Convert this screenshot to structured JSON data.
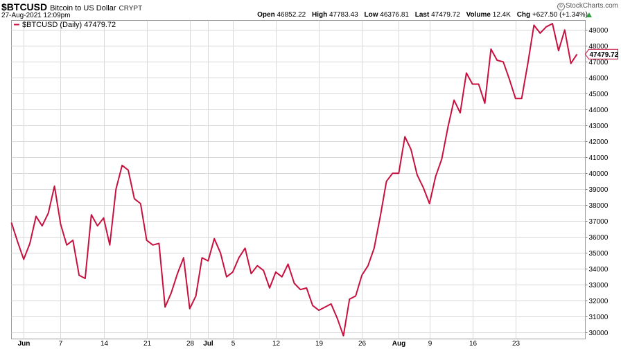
{
  "header": {
    "symbol": "$BTCUSD",
    "name": "Bitcoin to US Dollar",
    "exchange": "CRYPT",
    "brand": "StockCharts.com",
    "brand_mark": "©",
    "date": "27-Aug-2021 12:09pm"
  },
  "quote": {
    "open_label": "Open",
    "open": "46852.22",
    "high_label": "High",
    "high": "47783.43",
    "low_label": "Low",
    "low": "46376.81",
    "last_label": "Last",
    "last": "47479.72",
    "volume_label": "Volume",
    "volume": "12.4K",
    "chg_label": "Chg",
    "chg": "+627.50 (+1.34%)",
    "chg_direction": "up"
  },
  "legend": {
    "text": "$BTCUSD (Daily) 47479.72"
  },
  "colors": {
    "line": "#c8103e",
    "grid": "#d8d8d8",
    "chg_up": "#2e9e3e"
  },
  "chart_data": {
    "type": "line",
    "title": "$BTCUSD",
    "xlabel": "",
    "ylabel": "",
    "ylim": [
      29600,
      49600
    ],
    "y_ticks": [
      30000,
      31000,
      32000,
      33000,
      34000,
      35000,
      36000,
      37000,
      38000,
      39000,
      40000,
      41000,
      42000,
      43000,
      44000,
      45000,
      46000,
      47000,
      48000,
      49000
    ],
    "x_tick_labels": [
      "Jun",
      "7",
      "14",
      "21",
      "28",
      "Jul",
      "5",
      "12",
      "19",
      "26",
      "Aug",
      "9",
      "16",
      "23"
    ],
    "x_tick_index": [
      2,
      8,
      15,
      22,
      29,
      32,
      36,
      43,
      50,
      57,
      63,
      68,
      75,
      82
    ],
    "last_value": "47479.72",
    "grid": true,
    "legend_position": "top-left",
    "series": [
      {
        "name": "$BTCUSD (Daily)",
        "values": [
          36900,
          35700,
          34600,
          35600,
          37300,
          36700,
          37500,
          39200,
          36800,
          35500,
          35800,
          33600,
          33400,
          37400,
          36700,
          37200,
          35500,
          39000,
          40500,
          40200,
          38400,
          38100,
          35800,
          35500,
          35600,
          31600,
          32500,
          33700,
          34700,
          31500,
          32300,
          34700,
          34500,
          35900,
          35000,
          33500,
          33800,
          34700,
          35300,
          33700,
          34200,
          33900,
          32800,
          33800,
          33500,
          34300,
          33100,
          32700,
          32800,
          31700,
          31400,
          31600,
          31800,
          30900,
          29800,
          32100,
          32300,
          33600,
          34200,
          35300,
          37300,
          39500,
          40000,
          40000,
          42300,
          41500,
          39900,
          39100,
          38100,
          39800,
          40900,
          42900,
          44600,
          43800,
          46300,
          45600,
          45600,
          44400,
          47800,
          47100,
          47000,
          45900,
          44700,
          44700,
          46900,
          49300,
          48800,
          49200,
          49400,
          47700,
          49000,
          46900,
          47479.72
        ]
      }
    ]
  }
}
